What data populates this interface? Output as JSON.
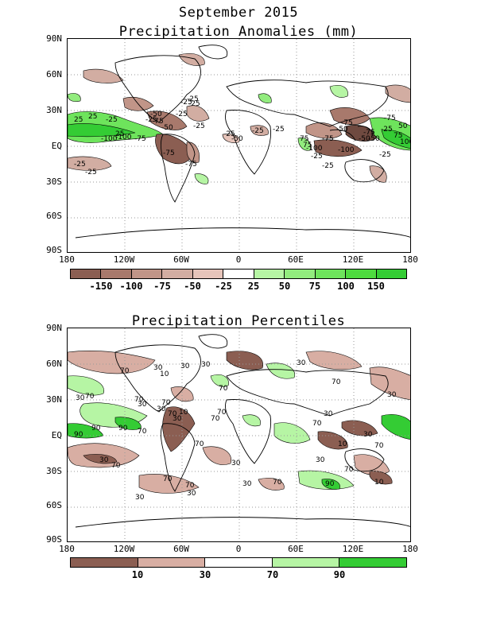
{
  "header": {
    "title": "September 2015"
  },
  "maps": [
    {
      "title": "Precipitation Anomalies (mm)",
      "lat_labels": [
        "90N",
        "60N",
        "30N",
        "EQ",
        "30S",
        "60S",
        "90S"
      ],
      "lon_labels": [
        "180",
        "120W",
        "60W",
        "0",
        "60E",
        "120E",
        "180"
      ],
      "colorbar": {
        "colors": [
          "#8b5e52",
          "#a8796c",
          "#c19588",
          "#d2ada2",
          "#e6c4ba",
          "#ffffff",
          "#b6f5a4",
          "#92ec7e",
          "#6ee45c",
          "#4edb3f",
          "#34cc34"
        ],
        "labels": [
          "-150",
          "-100",
          "-75",
          "-50",
          "-25",
          "25",
          "50",
          "75",
          "100",
          "150"
        ]
      },
      "contour_labels": [
        "-25",
        "-50",
        "-25",
        "-75",
        "-50",
        "-25",
        "-25",
        "-25",
        "-50",
        "-75",
        "-100",
        "-25",
        "-75",
        "-75",
        "-25",
        "-25",
        "-25",
        "-25",
        "-25",
        "-75",
        "-100",
        "-25",
        "-50",
        "-75",
        "-50",
        "-75",
        "-25",
        "-50",
        "-75",
        "25",
        "25",
        "-100",
        "75",
        "75",
        "-25",
        "25",
        "-25",
        "-100",
        "-25",
        "50",
        "75",
        "100"
      ]
    },
    {
      "title": "Precipitation Percentiles",
      "lat_labels": [
        "90N",
        "60N",
        "30N",
        "EQ",
        "30S",
        "60S",
        "90S"
      ],
      "lon_labels": [
        "180",
        "120W",
        "60W",
        "0",
        "60E",
        "120E",
        "180"
      ],
      "colorbar": {
        "colors": [
          "#8b5e52",
          "#d8aea3",
          "#ffffff",
          "#b6f5a4",
          "#34cc34"
        ],
        "labels": [
          "10",
          "30",
          "70",
          "90"
        ]
      },
      "contour_labels": [
        "70",
        "30",
        "30",
        "70",
        "30",
        "70",
        "70",
        "30",
        "70",
        "30",
        "30",
        "70",
        "90",
        "90",
        "70",
        "10",
        "30",
        "70",
        "70",
        "70",
        "30",
        "30",
        "70",
        "10",
        "30",
        "70",
        "30",
        "30",
        "70",
        "70",
        "30",
        "30",
        "70",
        "30",
        "70",
        "90",
        "70",
        "10",
        "30",
        "10",
        "70",
        "90",
        "30"
      ]
    }
  ]
}
